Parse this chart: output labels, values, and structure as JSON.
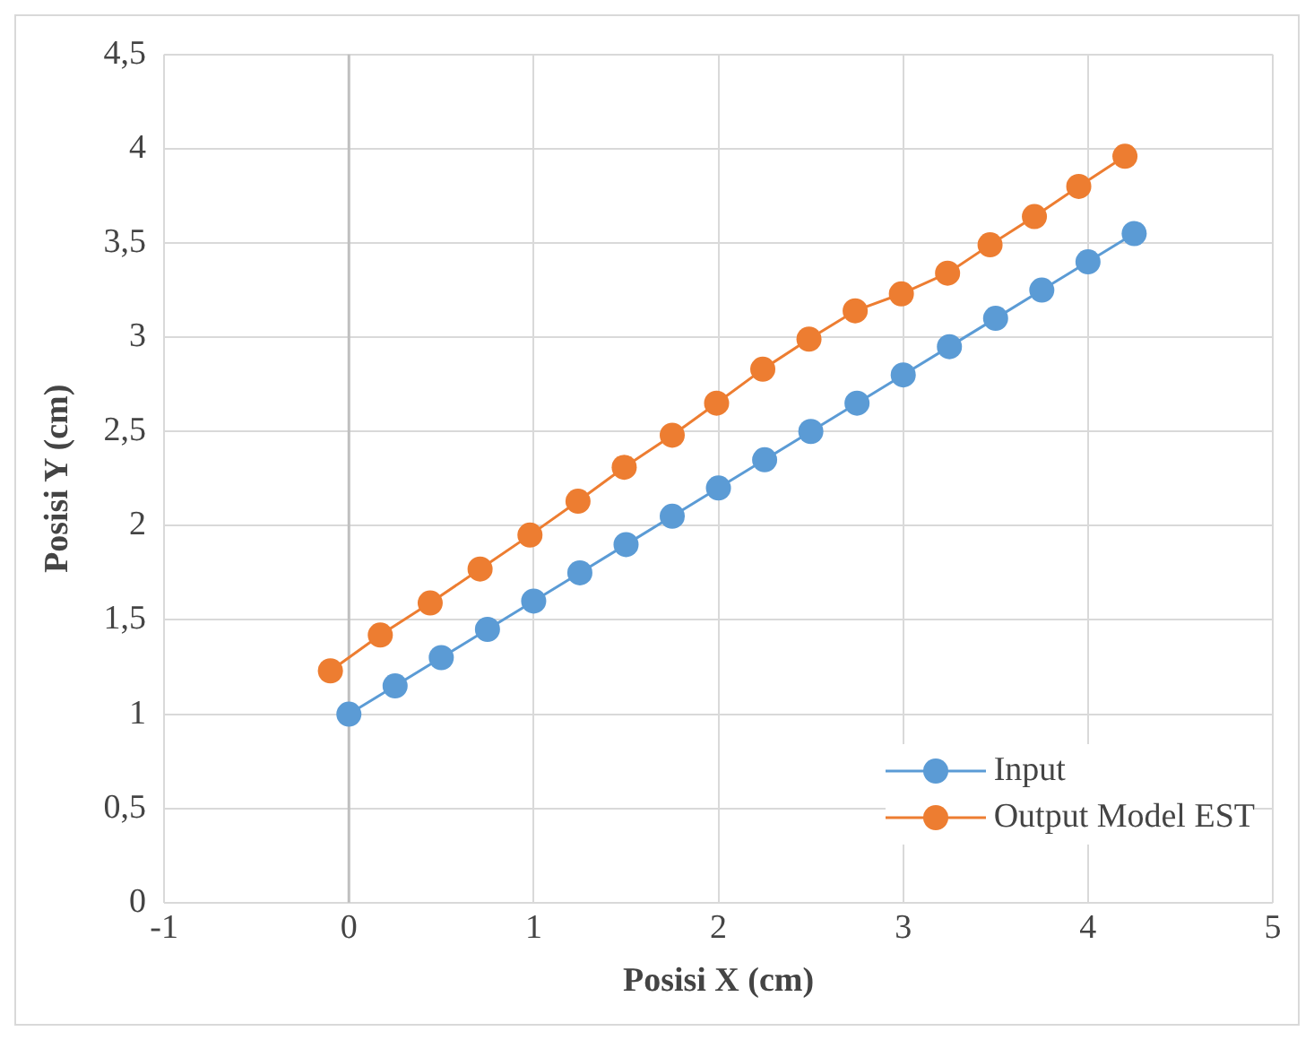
{
  "chart_data": {
    "type": "line",
    "xlabel": "Posisi X (cm)",
    "ylabel": "Posisi Y (cm)",
    "series": [
      {
        "name": "Input",
        "color": "#5b9bd5",
        "x": [
          0,
          0.25,
          0.5,
          0.75,
          1,
          1.25,
          1.5,
          1.75,
          2,
          2.25,
          2.5,
          2.75,
          3,
          3.25,
          3.5,
          3.75,
          4,
          4.25
        ],
        "values": [
          1,
          1.15,
          1.3,
          1.45,
          1.6,
          1.75,
          1.9,
          2.05,
          2.2,
          2.35,
          2.5,
          2.65,
          2.8,
          2.95,
          3.1,
          3.25,
          3.4,
          3.55
        ]
      },
      {
        "name": "Output Model EST",
        "color": "#ed7d31",
        "x": [
          -0.1,
          0.17,
          0.44,
          0.71,
          0.98,
          1.24,
          1.49,
          1.75,
          1.99,
          2.24,
          2.49,
          2.74,
          2.99,
          3.24,
          3.47,
          3.71,
          3.95,
          4.2
        ],
        "values": [
          1.23,
          1.42,
          1.59,
          1.77,
          1.95,
          2.13,
          2.31,
          2.48,
          2.65,
          2.83,
          2.99,
          3.14,
          3.23,
          3.34,
          3.49,
          3.64,
          3.8,
          3.96
        ]
      }
    ],
    "xlim": [
      -1,
      5
    ],
    "xticks": [
      -1,
      0,
      1,
      2,
      3,
      4,
      5
    ],
    "ylim": [
      0,
      4.5
    ],
    "yticks": [
      0,
      {
        "value": 0.5,
        "label": "0,5"
      },
      1,
      {
        "value": 1.5,
        "label": "1,5"
      },
      2,
      {
        "value": 2.5,
        "label": "2,5"
      },
      3,
      {
        "value": 3.5,
        "label": "3,5"
      },
      4,
      {
        "value": 4.5,
        "label": "4,5"
      }
    ],
    "grid": true,
    "legend": "bottom right",
    "marker": "circle",
    "line_style": "solid"
  }
}
